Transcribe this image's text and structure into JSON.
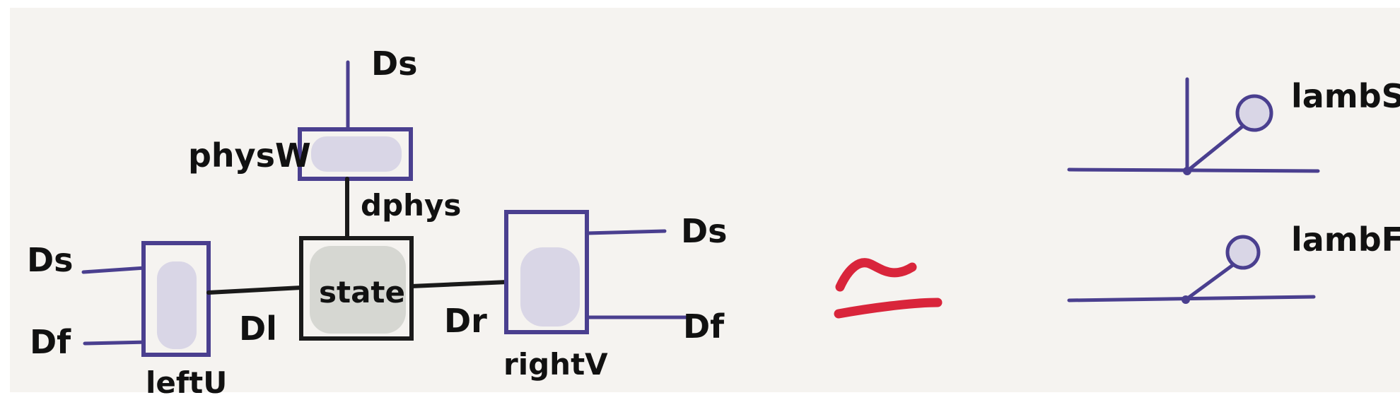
{
  "colors": {
    "background": "#f5f3f0",
    "wire_purple": "#4a3f8f",
    "wire_black": "#1a1a1a",
    "box_fill_purple": "#d9d6e6",
    "box_fill_gray": "#cbcec8",
    "equiv_red": "#d9253b"
  },
  "left_diagram": {
    "boxes": {
      "physW": {
        "label": "physW"
      },
      "leftU": {
        "label": "leftU"
      },
      "state": {
        "label": "state"
      },
      "rightV": {
        "label": "rightV"
      }
    },
    "wires": {
      "top_ds": "Ds",
      "dphys": "dphys",
      "left_ds": "Ds",
      "left_df": "Df",
      "dl": "Dl",
      "dr": "Dr",
      "right_ds": "Ds",
      "right_df": "Df"
    }
  },
  "equivalence_symbol": "≃",
  "right_diagram": {
    "lambS": "lambS",
    "lambF": "lambF"
  }
}
